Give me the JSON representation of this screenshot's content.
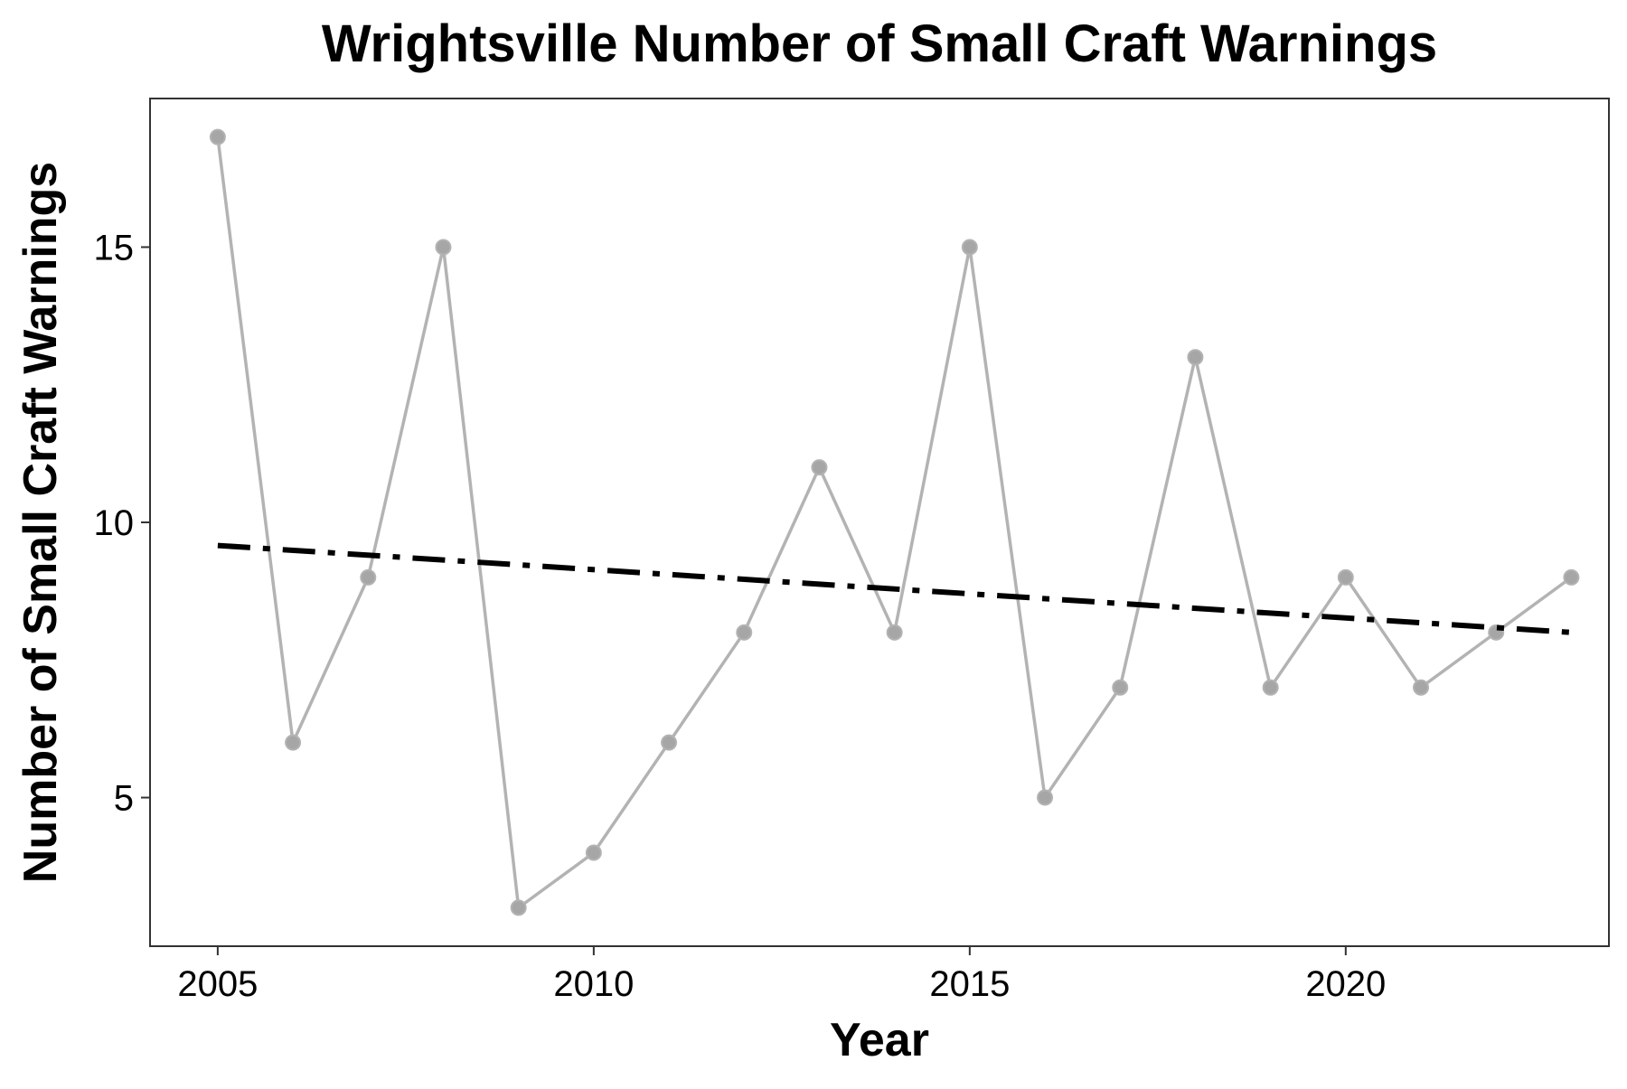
{
  "chart_data": {
    "type": "line",
    "title": "Wrightsville Number of Small Craft Warnings",
    "xlabel": "Year",
    "ylabel": "Number of Small Craft Warnings",
    "xlim": [
      2004.1,
      2023.5
    ],
    "ylim": [
      2.3,
      17.7
    ],
    "x_ticks": [
      2005,
      2010,
      2015,
      2020
    ],
    "y_ticks": [
      5,
      10,
      15
    ],
    "grid": false,
    "legend": "none",
    "series": [
      {
        "style": "line-with-points",
        "color": "#b3b3b3",
        "point_color": "#a6a6a6",
        "x": [
          2005,
          2006,
          2007,
          2008,
          2009,
          2010,
          2011,
          2012,
          2013,
          2014,
          2015,
          2016,
          2017,
          2018,
          2019,
          2020,
          2021,
          2022,
          2023
        ],
        "y": [
          17,
          6,
          9,
          15,
          3,
          4,
          6,
          8,
          11,
          8,
          15,
          5,
          7,
          13,
          7,
          9,
          7,
          8,
          9
        ]
      },
      {
        "style": "dash-dot-trend",
        "color": "#000000",
        "x": [
          2005,
          2023
        ],
        "y": [
          9.58,
          8.0
        ]
      }
    ]
  }
}
